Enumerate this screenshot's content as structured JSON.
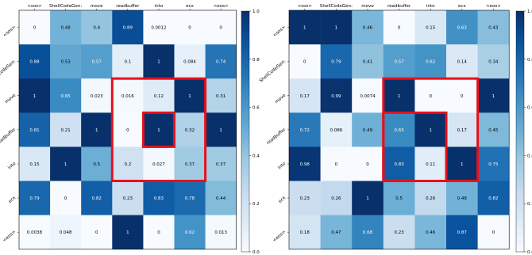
{
  "colors": {
    "cmap_low": "#f7fbff",
    "cmap_mid": "#6baed6",
    "cmap_high": "#08306b",
    "highlight": "#e8101a",
    "dark_text": "#000000",
    "light_text": "#ffffff"
  },
  "chart_data": [
    {
      "type": "heatmap",
      "x_labels": [
        "<sos>",
        "ShellCodeGen:",
        "move",
        "readbuffer",
        "into",
        "ecx",
        "<eos>"
      ],
      "y_labels": [
        "<sos>",
        "ShellCodeGen:",
        "move",
        "readbuffer",
        "into",
        "ecx",
        "<eos>"
      ],
      "values": [
        [
          0,
          0.48,
          0.4,
          0.89,
          0.0012,
          0,
          0
        ],
        [
          0.88,
          0.53,
          0.57,
          0.1,
          1,
          0.084,
          0.74
        ],
        [
          1,
          0.65,
          0.023,
          0.016,
          0.12,
          1,
          0.31
        ],
        [
          0.81,
          0.21,
          1,
          0,
          1,
          0.32,
          1
        ],
        [
          0.15,
          1,
          0.5,
          0.2,
          0.027,
          0.37,
          0.37
        ],
        [
          0.79,
          0,
          0.82,
          0.23,
          0.83,
          0.78,
          0.44
        ],
        [
          0.0038,
          0.048,
          0,
          1,
          0,
          0.62,
          0.013
        ]
      ],
      "colorbar_ticks": [
        "0.0",
        "0.2",
        "0.4",
        "0.6",
        "0.8",
        "1.0"
      ],
      "vlim": [
        0,
        1
      ],
      "highlights": [
        {
          "rows": [
            2,
            4
          ],
          "cols": [
            3,
            5
          ]
        },
        {
          "rows": [
            3,
            3
          ],
          "cols": [
            4,
            4
          ]
        }
      ]
    },
    {
      "type": "heatmap",
      "x_labels": [
        "<sos>",
        "ShellCodeGen:",
        "move",
        "readbuffer",
        "into",
        "ecx",
        "<eos>"
      ],
      "y_labels": [
        "<sos>",
        "ShellCodeGen:",
        "move",
        "readbuffer",
        "into",
        "ecx",
        "<eos>"
      ],
      "values": [
        [
          1,
          1,
          0.46,
          0,
          0.15,
          0.63,
          0.43
        ],
        [
          0,
          0.79,
          0.41,
          0.57,
          0.62,
          0.14,
          0.34
        ],
        [
          0.17,
          0.99,
          0.0074,
          1,
          0,
          0,
          1
        ],
        [
          0.72,
          0.086,
          0.49,
          0.65,
          1,
          0.17,
          0.45
        ],
        [
          0.98,
          0,
          0,
          0.83,
          0.11,
          1,
          0.75
        ],
        [
          0.23,
          0.26,
          1,
          0.5,
          0.26,
          0.48,
          0.82
        ],
        [
          0.18,
          0.47,
          0.68,
          0.23,
          0.46,
          0.87,
          0
        ]
      ],
      "colorbar_ticks": [
        "0.0",
        "0.2",
        "0.4",
        "0.6",
        "0.8",
        "1.0"
      ],
      "vlim": [
        0,
        1
      ],
      "highlights": [
        {
          "rows": [
            2,
            4
          ],
          "cols": [
            3,
            5
          ]
        },
        {
          "rows": [
            3,
            4
          ],
          "cols": [
            3,
            4
          ]
        }
      ]
    }
  ]
}
